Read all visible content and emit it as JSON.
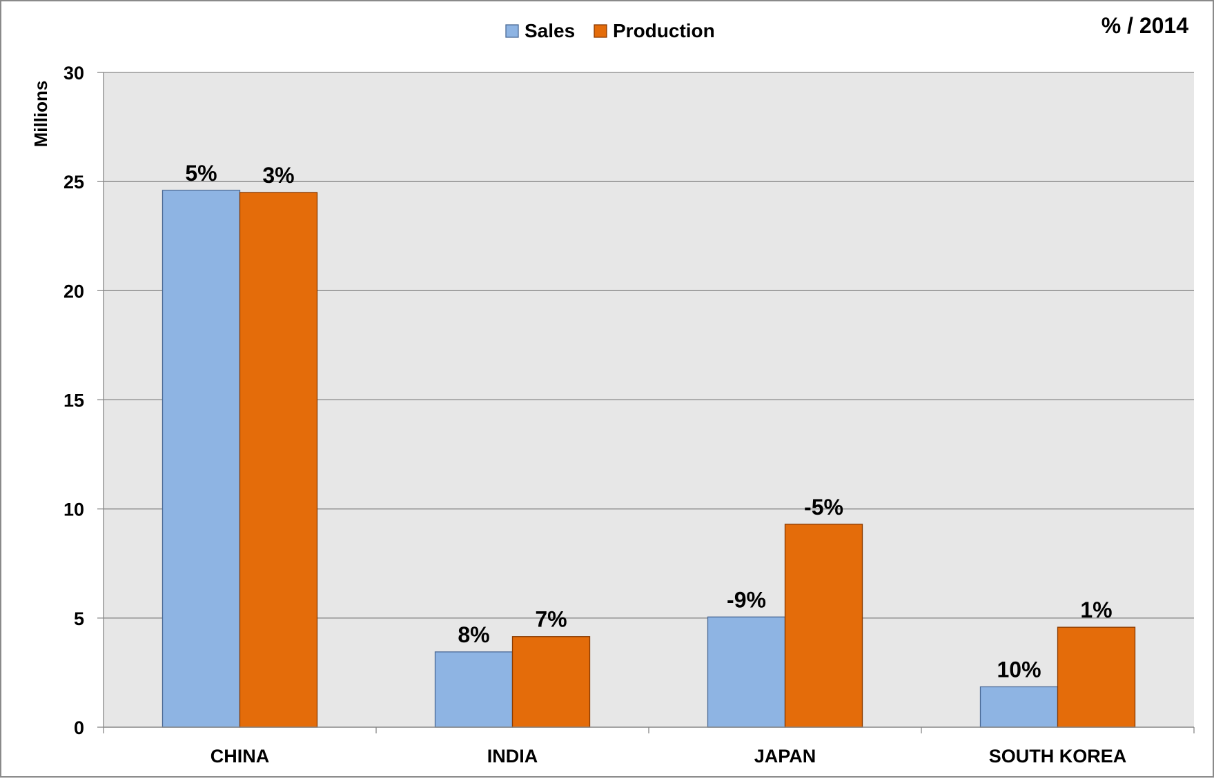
{
  "chart_data": {
    "type": "bar",
    "categories": [
      "CHINA",
      "INDIA",
      "JAPAN",
      "SOUTH KOREA"
    ],
    "series": [
      {
        "name": "Sales",
        "color": "#8eb4e3",
        "values": [
          24.6,
          3.45,
          5.05,
          1.85
        ],
        "labels": [
          "5%",
          "8%",
          "-9%",
          "10%"
        ]
      },
      {
        "name": "Production",
        "color": "#e46c0a",
        "values": [
          24.5,
          4.15,
          9.3,
          4.58
        ],
        "labels": [
          "3%",
          "7%",
          "-5%",
          "1%"
        ]
      }
    ],
    "ylabel": "Millions",
    "annotation": "% / 2014",
    "ylim": [
      0,
      30
    ],
    "yticks": [
      "0",
      "5",
      "10",
      "15",
      "20",
      "25",
      "30"
    ],
    "grid": true,
    "legend_position": "top-center",
    "plot_background": "#e7e7e7",
    "gridline_color": "#868686"
  }
}
